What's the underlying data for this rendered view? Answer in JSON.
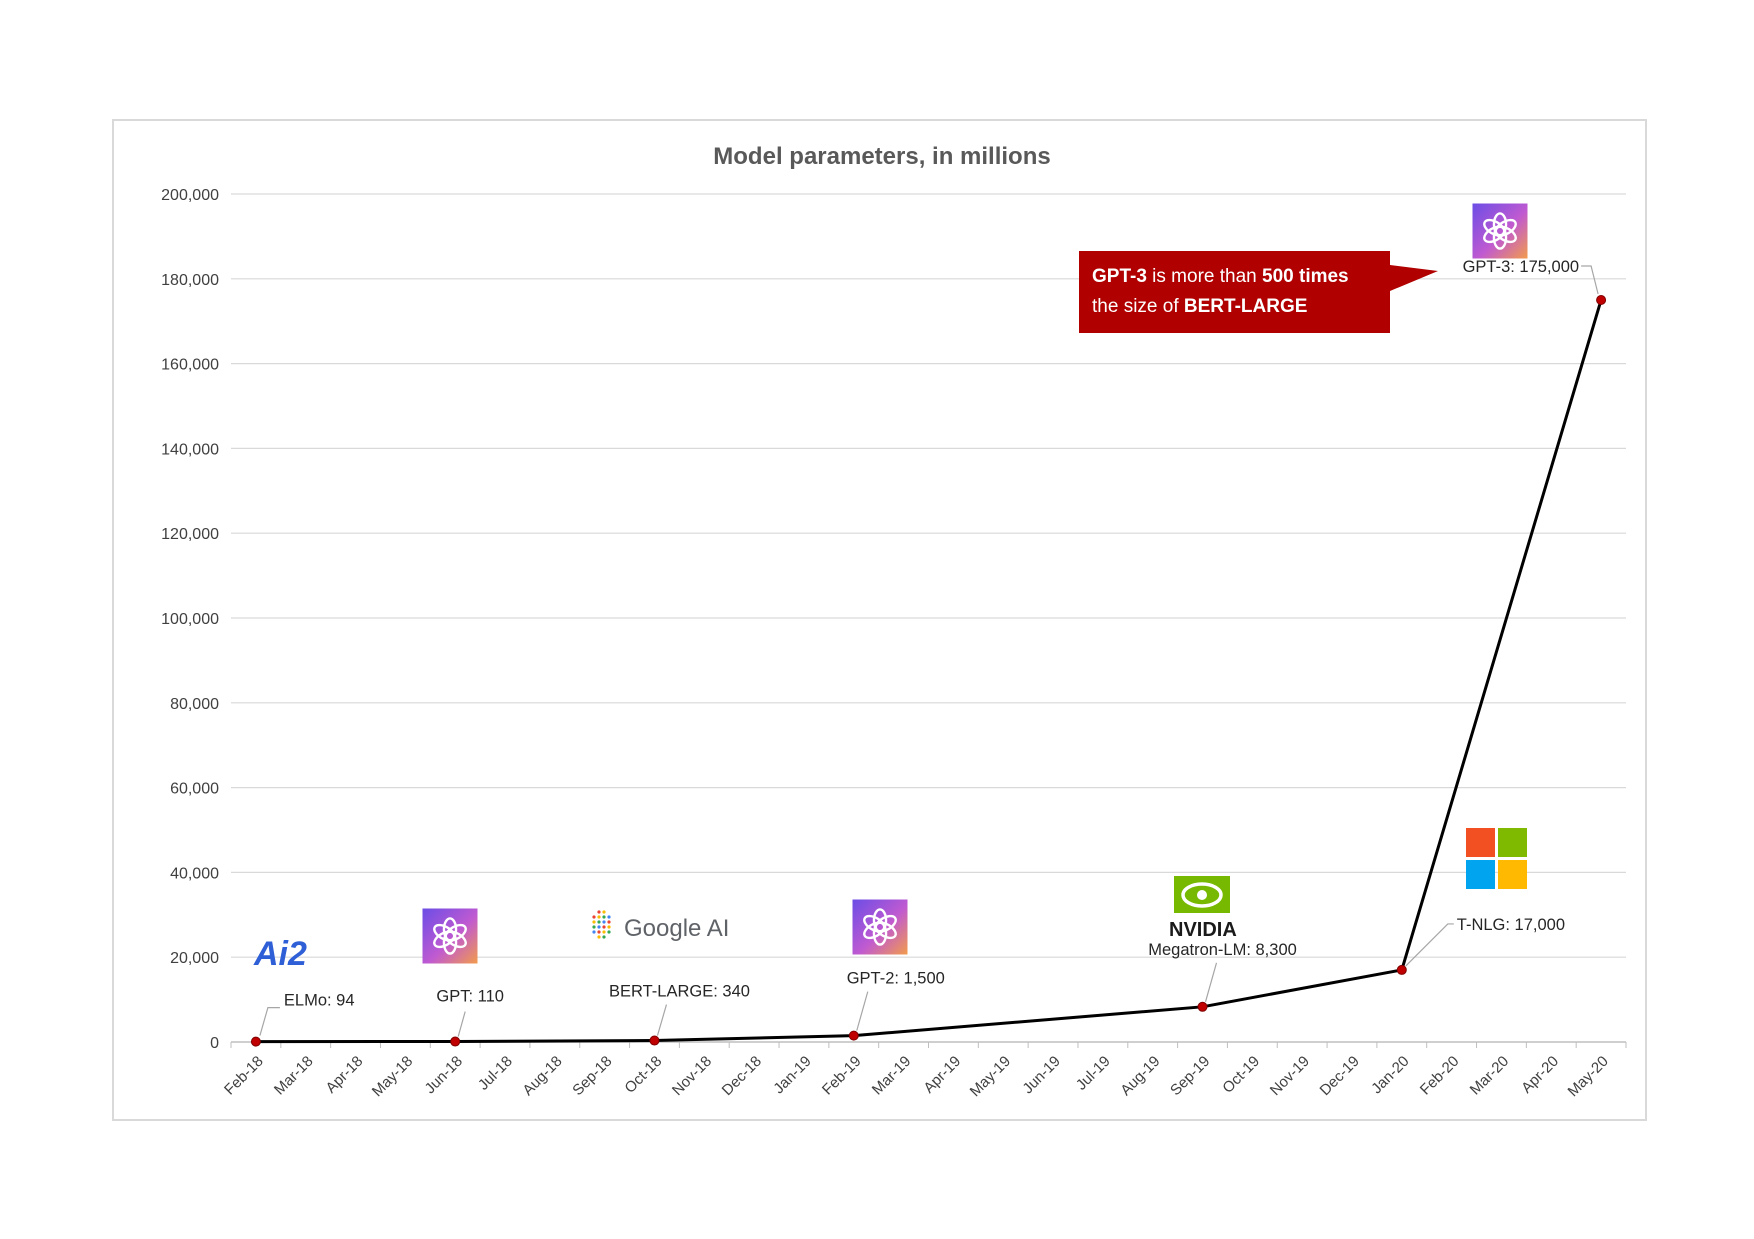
{
  "chart_data": {
    "type": "line",
    "title": "Model parameters, in millions",
    "xlabel": "",
    "ylabel": "",
    "ylim": [
      0,
      200000
    ],
    "yticks": [
      "0",
      "20,000",
      "40,000",
      "60,000",
      "80,000",
      "100,000",
      "120,000",
      "140,000",
      "160,000",
      "180,000",
      "200,000"
    ],
    "categories": [
      "Feb-18",
      "Mar-18",
      "Apr-18",
      "May-18",
      "Jun-18",
      "Jul-18",
      "Aug-18",
      "Sep-18",
      "Oct-18",
      "Nov-18",
      "Dec-18",
      "Jan-19",
      "Feb-19",
      "Mar-19",
      "Apr-19",
      "May-19",
      "Jun-19",
      "Jul-19",
      "Aug-19",
      "Sep-19",
      "Oct-19",
      "Nov-19",
      "Dec-19",
      "Jan-20",
      "Feb-20",
      "Mar-20",
      "Apr-20",
      "May-20"
    ],
    "grid": true,
    "legend": "none",
    "line_color": "#000000",
    "marker_color": "#c00000",
    "points": [
      {
        "month": "Feb-18",
        "value": 94,
        "label": "ELMo: 94",
        "logo": "ai2-logo"
      },
      {
        "month": "Jun-18",
        "value": 110,
        "label": "GPT: 110",
        "logo": "openai-logo"
      },
      {
        "month": "Oct-18",
        "value": 340,
        "label": "BERT-LARGE: 340",
        "logo": "google-ai-logo"
      },
      {
        "month": "Feb-19",
        "value": 1500,
        "label": "GPT-2: 1,500",
        "logo": "openai-logo"
      },
      {
        "month": "Sep-19",
        "value": 8300,
        "label": "Megatron-LM: 8,300",
        "logo": "nvidia-logo"
      },
      {
        "month": "Jan-20",
        "value": 17000,
        "label": "T-NLG: 17,000",
        "logo": "microsoft-logo"
      },
      {
        "month": "May-20",
        "value": 175000,
        "label": "GPT-3: 175,000",
        "logo": "openai-logo"
      }
    ],
    "callout": {
      "line1_bold": "GPT-3",
      "line1_mid": " is more than ",
      "line1_bold2": "500 times",
      "line2_text": "the size  of ",
      "line2_bold": "BERT-LARGE",
      "background": "#b00000"
    },
    "logos": {
      "ai2_text": "Ai2",
      "google_text": "Google AI",
      "nvidia_text": "NVIDIA"
    }
  }
}
